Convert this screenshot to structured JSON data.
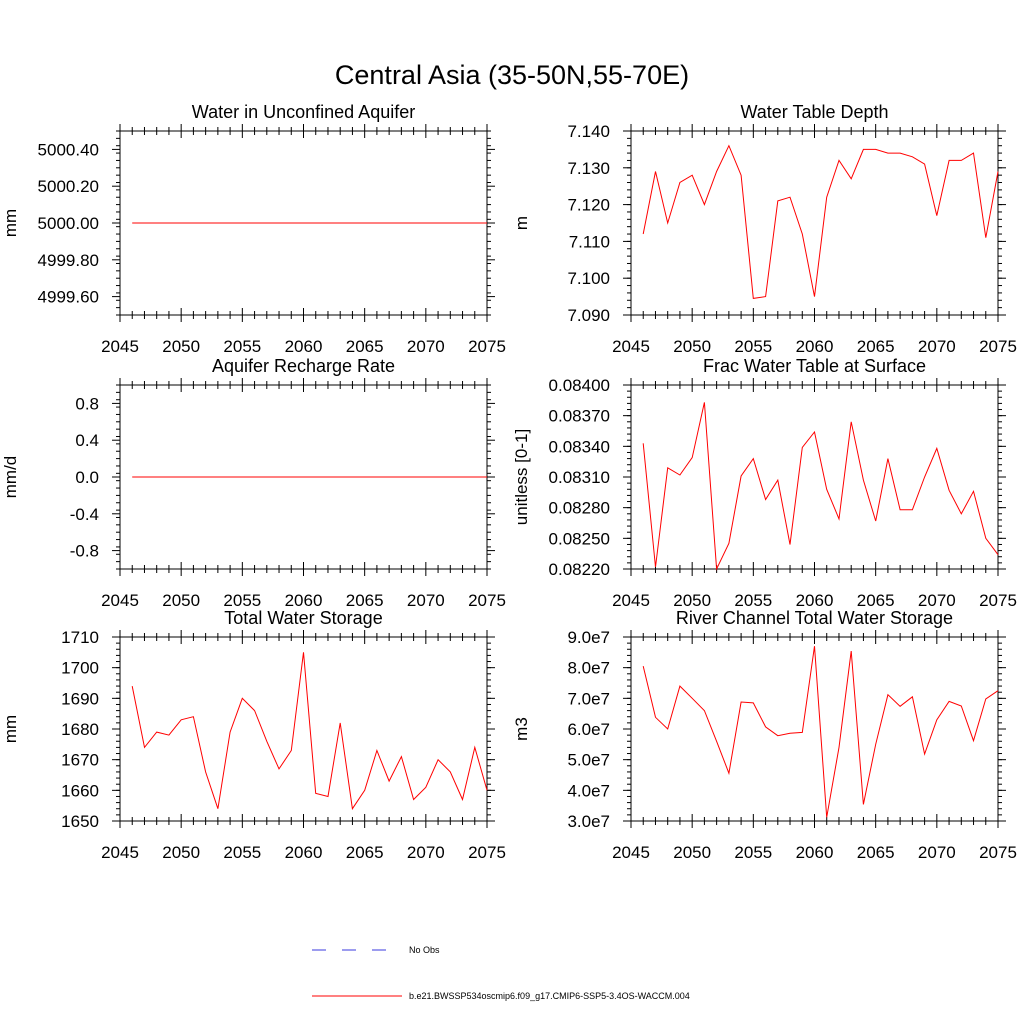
{
  "figure": {
    "title": "Central Asia (35-50N,55-70E)"
  },
  "legend": {
    "items": [
      {
        "label": "No Obs",
        "color": "#3a3adf",
        "style": "dashed"
      },
      {
        "label": "b.e21.BWSSP534oscmip6.f09_g17.CMIP6-SSP5-3.4OS-WACCM.004",
        "color": "#ff0000",
        "style": "solid"
      }
    ]
  },
  "chart_data": [
    {
      "type": "line",
      "title": "Water in Unconfined Aquifer",
      "ylabel": "mm",
      "xlim": [
        2045,
        2075
      ],
      "ylim": [
        4999.5,
        5000.5
      ],
      "xticks": [
        2045,
        2050,
        2055,
        2060,
        2065,
        2070,
        2075
      ],
      "yticks": [
        4999.6,
        4999.8,
        5000.0,
        5000.2,
        5000.4
      ],
      "ytick_labels": [
        "4999.60",
        "4999.80",
        "5000.00",
        "5000.20",
        "5000.40"
      ],
      "series": [
        {
          "x": [
            2046,
            2047,
            2048,
            2049,
            2050,
            2051,
            2052,
            2053,
            2054,
            2055,
            2056,
            2057,
            2058,
            2059,
            2060,
            2061,
            2062,
            2063,
            2064,
            2065,
            2066,
            2067,
            2068,
            2069,
            2070,
            2071,
            2072,
            2073,
            2074,
            2075
          ],
          "values": [
            5000,
            5000,
            5000,
            5000,
            5000,
            5000,
            5000,
            5000,
            5000,
            5000,
            5000,
            5000,
            5000,
            5000,
            5000,
            5000,
            5000,
            5000,
            5000,
            5000,
            5000,
            5000,
            5000,
            5000,
            5000,
            5000,
            5000,
            5000,
            5000,
            5000
          ],
          "color": "#ff0000"
        }
      ]
    },
    {
      "type": "line",
      "title": "Water Table Depth",
      "ylabel": "m",
      "xlim": [
        2045,
        2075
      ],
      "ylim": [
        7.09,
        7.14
      ],
      "xticks": [
        2045,
        2050,
        2055,
        2060,
        2065,
        2070,
        2075
      ],
      "yticks": [
        7.09,
        7.1,
        7.11,
        7.12,
        7.13,
        7.14
      ],
      "ytick_labels": [
        "7.090",
        "7.100",
        "7.110",
        "7.120",
        "7.130",
        "7.140"
      ],
      "series": [
        {
          "x": [
            2046,
            2047,
            2048,
            2049,
            2050,
            2051,
            2052,
            2053,
            2054,
            2055,
            2056,
            2057,
            2058,
            2059,
            2060,
            2061,
            2062,
            2063,
            2064,
            2065,
            2066,
            2067,
            2068,
            2069,
            2070,
            2071,
            2072,
            2073,
            2074,
            2075
          ],
          "values": [
            7.112,
            7.129,
            7.115,
            7.126,
            7.128,
            7.12,
            7.129,
            7.136,
            7.128,
            7.0945,
            7.095,
            7.121,
            7.122,
            7.112,
            7.095,
            7.122,
            7.132,
            7.127,
            7.135,
            7.135,
            7.134,
            7.134,
            7.133,
            7.131,
            7.117,
            7.132,
            7.132,
            7.134,
            7.111,
            7.129
          ],
          "color": "#ff0000"
        }
      ]
    },
    {
      "type": "line",
      "title": "Aquifer Recharge Rate",
      "ylabel": "mm/d",
      "xlim": [
        2045,
        2075
      ],
      "ylim": [
        -1.0,
        1.0
      ],
      "xticks": [
        2045,
        2050,
        2055,
        2060,
        2065,
        2070,
        2075
      ],
      "yticks": [
        -0.8,
        -0.4,
        0.0,
        0.4,
        0.8
      ],
      "ytick_labels": [
        "-0.8",
        "-0.4",
        "0.0",
        "0.4",
        "0.8"
      ],
      "series": [
        {
          "x": [
            2046,
            2047,
            2048,
            2049,
            2050,
            2051,
            2052,
            2053,
            2054,
            2055,
            2056,
            2057,
            2058,
            2059,
            2060,
            2061,
            2062,
            2063,
            2064,
            2065,
            2066,
            2067,
            2068,
            2069,
            2070,
            2071,
            2072,
            2073,
            2074,
            2075
          ],
          "values": [
            0,
            0,
            0,
            0,
            0,
            0,
            0,
            0,
            0,
            0,
            0,
            0,
            0,
            0,
            0,
            0,
            0,
            0,
            0,
            0,
            0,
            0,
            0,
            0,
            0,
            0,
            0,
            0,
            0,
            0
          ],
          "color": "#ff0000"
        }
      ]
    },
    {
      "type": "line",
      "title": "Frac Water Table at Surface",
      "ylabel": "unitless [0-1]",
      "xlim": [
        2045,
        2075
      ],
      "ylim": [
        0.0822,
        0.084
      ],
      "xticks": [
        2045,
        2050,
        2055,
        2060,
        2065,
        2070,
        2075
      ],
      "yticks": [
        0.0822,
        0.0825,
        0.0828,
        0.0831,
        0.0834,
        0.0837,
        0.084
      ],
      "ytick_labels": [
        "0.08220",
        "0.08250",
        "0.08280",
        "0.08310",
        "0.08340",
        "0.08370",
        "0.08400"
      ],
      "series": [
        {
          "x": [
            2046,
            2047,
            2048,
            2049,
            2050,
            2051,
            2052,
            2053,
            2054,
            2055,
            2056,
            2057,
            2058,
            2059,
            2060,
            2061,
            2062,
            2063,
            2064,
            2065,
            2066,
            2067,
            2068,
            2069,
            2070,
            2071,
            2072,
            2073,
            2074,
            2075
          ],
          "values": [
            0.08343,
            0.08222,
            0.08319,
            0.08312,
            0.08329,
            0.08383,
            0.0822,
            0.08245,
            0.08311,
            0.08328,
            0.08288,
            0.08307,
            0.08244,
            0.08339,
            0.08354,
            0.08298,
            0.08269,
            0.08364,
            0.08307,
            0.08267,
            0.08328,
            0.08278,
            0.08278,
            0.0831,
            0.08338,
            0.08297,
            0.08274,
            0.08296,
            0.0825,
            0.08234
          ],
          "color": "#ff0000"
        }
      ]
    },
    {
      "type": "line",
      "title": "Total Water Storage",
      "ylabel": "mm",
      "xlim": [
        2045,
        2075
      ],
      "ylim": [
        1650,
        1710
      ],
      "xticks": [
        2045,
        2050,
        2055,
        2060,
        2065,
        2070,
        2075
      ],
      "yticks": [
        1650,
        1660,
        1670,
        1680,
        1690,
        1700,
        1710
      ],
      "ytick_labels": [
        "1650",
        "1660",
        "1670",
        "1680",
        "1690",
        "1700",
        "1710"
      ],
      "series": [
        {
          "x": [
            2046,
            2047,
            2048,
            2049,
            2050,
            2051,
            2052,
            2053,
            2054,
            2055,
            2056,
            2057,
            2058,
            2059,
            2060,
            2061,
            2062,
            2063,
            2064,
            2065,
            2066,
            2067,
            2068,
            2069,
            2070,
            2071,
            2072,
            2073,
            2074,
            2075
          ],
          "values": [
            1694,
            1674,
            1679,
            1678,
            1683,
            1684,
            1666,
            1654,
            1679,
            1690,
            1686,
            1676,
            1667,
            1673,
            1705,
            1659,
            1658,
            1682,
            1654,
            1660,
            1673,
            1663,
            1671,
            1657,
            1661,
            1670,
            1666,
            1657,
            1674,
            1660
          ],
          "color": "#ff0000"
        }
      ]
    },
    {
      "type": "line",
      "title": "River Channel Total Water Storage",
      "ylabel": "m3",
      "xlim": [
        2045,
        2075
      ],
      "ylim": [
        30000000,
        90000000
      ],
      "xticks": [
        2045,
        2050,
        2055,
        2060,
        2065,
        2070,
        2075
      ],
      "yticks": [
        30000000,
        40000000,
        50000000,
        60000000,
        70000000,
        80000000,
        90000000
      ],
      "ytick_labels": [
        "3.0e7",
        "4.0e7",
        "5.0e7",
        "6.0e7",
        "7.0e7",
        "8.0e7",
        "9.0e7"
      ],
      "series": [
        {
          "x": [
            2046,
            2047,
            2048,
            2049,
            2050,
            2051,
            2052,
            2053,
            2054,
            2055,
            2056,
            2057,
            2058,
            2059,
            2060,
            2061,
            2062,
            2063,
            2064,
            2065,
            2066,
            2067,
            2068,
            2069,
            2070,
            2071,
            2072,
            2073,
            2074,
            2075
          ],
          "values": [
            80500000,
            63800000,
            60000000,
            74000000,
            70000000,
            66000000,
            56000000,
            45600000,
            68800000,
            68500000,
            60700000,
            57800000,
            58600000,
            58900000,
            87000000,
            31200000,
            54000000,
            85400000,
            35400000,
            55000000,
            71200000,
            67400000,
            70500000,
            51800000,
            63000000,
            69000000,
            67500000,
            56200000,
            69800000,
            72500000
          ],
          "color": "#ff0000"
        }
      ]
    }
  ]
}
